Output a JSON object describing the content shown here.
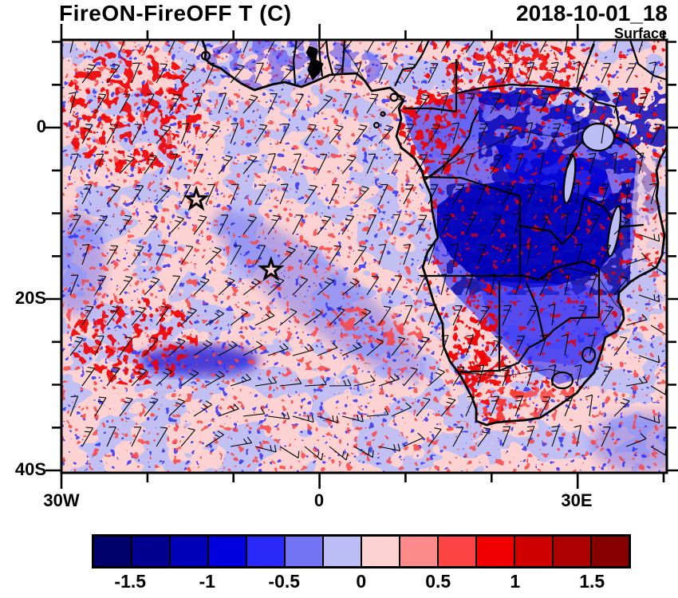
{
  "header": {
    "title": "FireON-FireOFF T (C)",
    "datetime": "2018-10-01_18",
    "level": "Surface"
  },
  "map": {
    "y_axis_ticks": [
      "0",
      "20S",
      "40S"
    ],
    "x_axis_ticks": [
      "30W",
      "0",
      "30E"
    ]
  },
  "colorbar": {
    "tick_labels": [
      "-1.5",
      "-1",
      "-0.5",
      "0",
      "0.5",
      "1",
      "1.5"
    ],
    "colors": [
      "#00006a",
      "#000091",
      "#0000b8",
      "#0000dd",
      "#2a2af8",
      "#7173f2",
      "#bcbdf6",
      "#fcd2d2",
      "#fc8a8a",
      "#fc4444",
      "#f10000",
      "#d10000",
      "#ad0000",
      "#870000"
    ]
  },
  "chart_data": {
    "type": "heatmap",
    "title": "FireON-FireOFF T (C)",
    "timestamp": "2018-10-01_18",
    "level": "Surface",
    "variable": "Surface temperature difference, FireON minus FireOFF",
    "units": "C",
    "x_tick_labels": [
      "30W",
      "0",
      "30E"
    ],
    "y_tick_labels": [
      "0",
      "20S",
      "40S"
    ],
    "lon_range_deg": [
      -30,
      40.5
    ],
    "lat_range_deg": [
      -40.3,
      10.2
    ],
    "contour_levels": [
      -1.5,
      -1.25,
      -1,
      -0.75,
      -0.5,
      -0.25,
      0,
      0.25,
      0.5,
      0.75,
      1,
      1.25,
      1.5
    ],
    "palette": [
      "#00006a",
      "#000091",
      "#0000b8",
      "#0000dd",
      "#2a2af8",
      "#7173f2",
      "#bcbdf6",
      "#fcd2d2",
      "#fc8a8a",
      "#fc4444",
      "#f10000",
      "#d10000",
      "#ad0000",
      "#870000"
    ],
    "legend_position": "bottom",
    "grid": false,
    "overlays": [
      "wind barbs",
      "coastlines",
      "country borders",
      "lakes",
      "star markers"
    ],
    "markers": [
      {
        "symbol": "star",
        "lon": -14.3,
        "lat": -8.4
      },
      {
        "symbol": "star",
        "lon": -5.6,
        "lat": -16.6
      }
    ],
    "features": [
      "strong cold anomaly (< -1.5 C, dark blue) over interior southern Africa (Angola, Zambia, Zimbabwe, DRC south)",
      "warm anomalies (red) along the Namibian coast, Gulf of Guinea coast, central/east Africa and NW Atlantic sector",
      "mostly weak anomalies (pale pink / light blue, within +/-0.25 C) over the open South Atlantic",
      "small-scale mixed red/blue speckle in the north-west quadrant and over the Congo basin",
      "anticyclonic wind-barb gyre in the south-west of the domain"
    ]
  }
}
